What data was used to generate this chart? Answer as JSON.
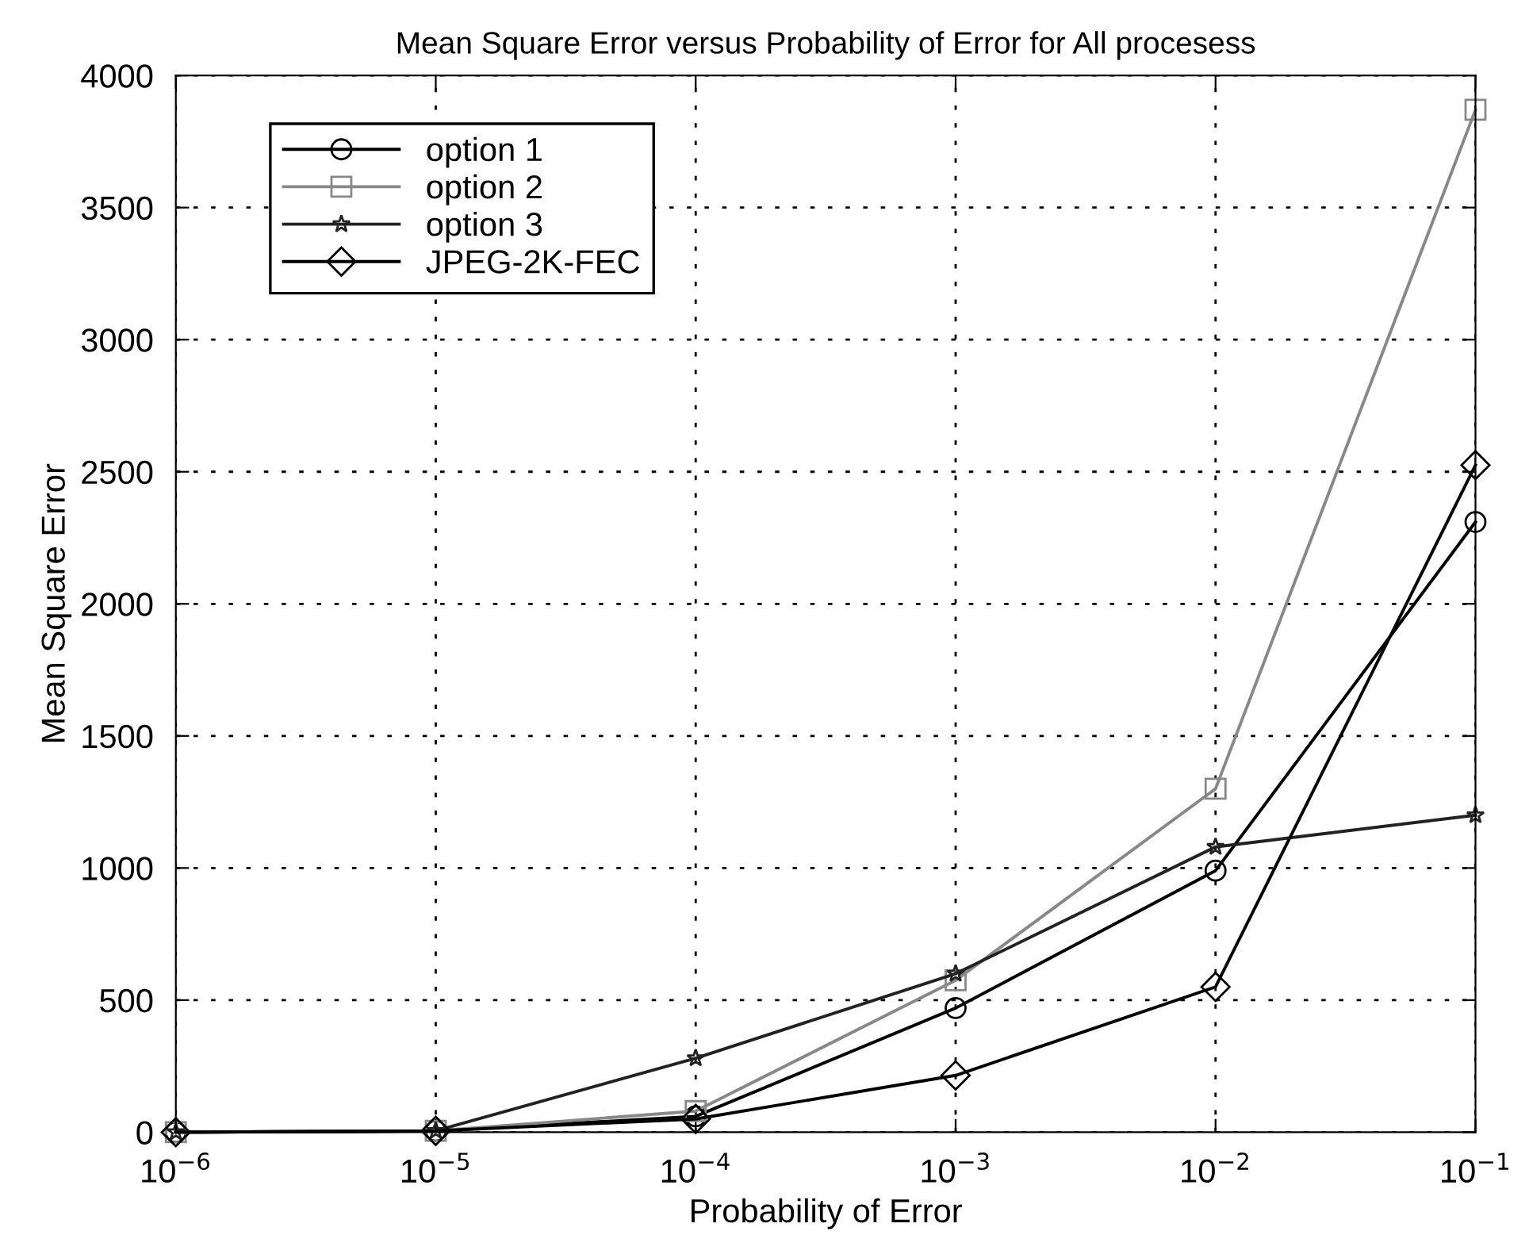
{
  "chart_data": {
    "type": "line",
    "title": "Mean Square Error versus Probability of Error for All procesess",
    "xlabel": "Probability of Error",
    "ylabel": "Mean Square Error",
    "x": [
      1e-06,
      1e-05,
      0.0001,
      0.001,
      0.01,
      0.1
    ],
    "series": [
      {
        "name": "option 1",
        "color": "#000000",
        "marker": "circle",
        "values": [
          0,
          5,
          60,
          470,
          990,
          2310
        ]
      },
      {
        "name": "option 2",
        "color": "#888888",
        "marker": "square",
        "values": [
          0,
          5,
          80,
          575,
          1300,
          3870
        ]
      },
      {
        "name": "option 3",
        "color": "#222222",
        "marker": "star",
        "values": [
          0,
          5,
          280,
          600,
          1080,
          1200
        ]
      },
      {
        "name": "JPEG-2K-FEC",
        "color": "#000000",
        "marker": "diamond",
        "values": [
          0,
          5,
          50,
          215,
          550,
          2525
        ]
      }
    ],
    "log": "x",
    "xlim": [
      1e-06,
      0.1
    ],
    "ylim": [
      0,
      4000
    ],
    "xticks": [
      {
        "value": 1e-06,
        "label": "10$^{−6}$"
      },
      {
        "value": 1e-05,
        "label": "10$^{−5}$"
      },
      {
        "value": 0.0001,
        "label": "10$^{−4}$"
      },
      {
        "value": 0.001,
        "label": "10$^{−3}$"
      },
      {
        "value": 0.01,
        "label": "10$^{−2}$"
      },
      {
        "value": 0.1,
        "label": "10$^{−1}$"
      }
    ],
    "yticks": [
      0,
      500,
      1000,
      1500,
      2000,
      2500,
      3000,
      3500,
      4000
    ],
    "grid": true,
    "legend": "top left",
    "line_style": "solid"
  }
}
